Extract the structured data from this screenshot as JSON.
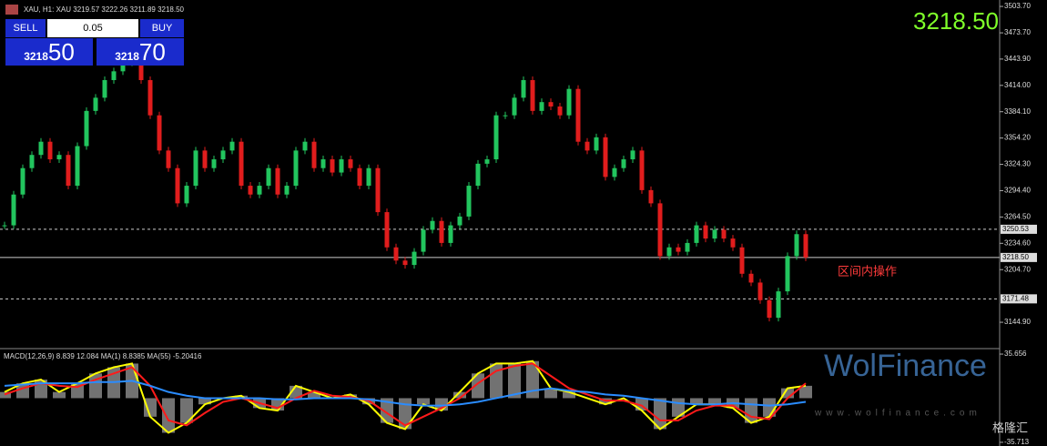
{
  "ui": {
    "symbol_info": "XAU, H1: XAU 3219.57 3222.26 3211.89 3218.50",
    "sell": "SELL",
    "buy": "BUY",
    "volume": "0.05",
    "sell_small": "3218",
    "sell_big": "50",
    "buy_small": "3218",
    "buy_big": "70",
    "big_price": "3218.50",
    "annotation": "区间内操作",
    "watermark": "WolFinance",
    "watermark_url": "www.wolfinance.com",
    "source": "格隆汇"
  },
  "chart_data": [
    {
      "type": "candlestick",
      "ylim": [
        3116,
        3511
      ],
      "yticks": [
        {
          "value": 3503.7,
          "label": "3503.70"
        },
        {
          "value": 3473.7,
          "label": "3473.70"
        },
        {
          "value": 3443.9,
          "label": "3443.90"
        },
        {
          "value": 3414,
          "label": "3414.00"
        },
        {
          "value": 3384.1,
          "label": "3384.10"
        },
        {
          "value": 3354.2,
          "label": "3354.20"
        },
        {
          "value": 3324.3,
          "label": "3324.30"
        },
        {
          "value": 3294.4,
          "label": "3294.40"
        },
        {
          "value": 3264.5,
          "label": "3264.50"
        },
        {
          "value": 3234.6,
          "label": "3234.60"
        },
        {
          "value": 3204.7,
          "label": "3204.70"
        },
        {
          "value": 3144.9,
          "label": "3144.90"
        }
      ],
      "levels": [
        {
          "value": 3250.53,
          "label": "3250.53",
          "style": "dashed"
        },
        {
          "value": 3218.5,
          "label": "3218.50",
          "style": "solid"
        },
        {
          "value": 3171.48,
          "label": "3171.48",
          "style": "dashed"
        }
      ],
      "up_color": "#22c55e",
      "down_color": "#e11d1d",
      "values": [
        3255,
        3290,
        3320,
        3335,
        3350,
        3330,
        3335,
        3300,
        3345,
        3385,
        3400,
        3420,
        3430,
        3440,
        3460,
        3420,
        3380,
        3340,
        3320,
        3280,
        3300,
        3340,
        3320,
        3330,
        3340,
        3350,
        3300,
        3290,
        3300,
        3320,
        3290,
        3300,
        3340,
        3350,
        3320,
        3330,
        3315,
        3330,
        3320,
        3300,
        3320,
        3270,
        3230,
        3215,
        3210,
        3225,
        3250,
        3260,
        3235,
        3255,
        3265,
        3300,
        3325,
        3330,
        3380,
        3380,
        3400,
        3420,
        3385,
        3395,
        3390,
        3380,
        3410,
        3350,
        3340,
        3355,
        3310,
        3320,
        3330,
        3340,
        3295,
        3280,
        3220,
        3230,
        3225,
        3235,
        3255,
        3240,
        3250,
        3240,
        3230,
        3200,
        3190,
        3170,
        3150,
        3180,
        3220,
        3245,
        3218.5
      ]
    },
    {
      "type": "macd",
      "title": "MACD(12,26,9) 8.839 12.084 MA(1) 8.8385 MA(55) -5.20416",
      "ylim": [
        -38.7,
        40.1
      ],
      "yticks": [
        35.656,
        -35.713
      ],
      "histogram_color": "#d0d0d0",
      "series": [
        {
          "name": "MACD",
          "color": "#ffff00",
          "values": [
            5,
            12,
            15,
            5,
            12,
            20,
            25,
            28,
            -15,
            -28,
            -20,
            -5,
            0,
            2,
            -8,
            -10,
            10,
            5,
            0,
            3,
            -5,
            -20,
            -25,
            -5,
            -10,
            5,
            20,
            28,
            28,
            30,
            8,
            5,
            0,
            -5,
            0,
            -10,
            -25,
            -15,
            -5,
            -5,
            -8,
            -20,
            -15,
            8,
            10
          ]
        },
        {
          "name": "Signal",
          "color": "#ff1a1a",
          "values": [
            3,
            8,
            12,
            10,
            9,
            15,
            20,
            25,
            10,
            -18,
            -22,
            -12,
            -3,
            0,
            -4,
            -8,
            0,
            6,
            2,
            1,
            -2,
            -12,
            -22,
            -15,
            -8,
            0,
            12,
            22,
            26,
            28,
            18,
            8,
            3,
            -2,
            -2,
            -6,
            -18,
            -18,
            -10,
            -6,
            -6,
            -15,
            -17,
            0,
            12
          ]
        },
        {
          "name": "MA(55)",
          "color": "#2a8cff",
          "values": [
            10,
            11,
            12,
            12,
            12,
            13,
            13,
            14,
            10,
            5,
            2,
            0,
            0,
            0,
            0,
            -1,
            -1,
            0,
            0,
            0,
            -1,
            -3,
            -5,
            -6,
            -6,
            -5,
            -3,
            0,
            3,
            6,
            8,
            6,
            5,
            3,
            2,
            0,
            -2,
            -4,
            -5,
            -5,
            -4,
            -5,
            -6,
            -5,
            -3
          ]
        }
      ]
    }
  ]
}
